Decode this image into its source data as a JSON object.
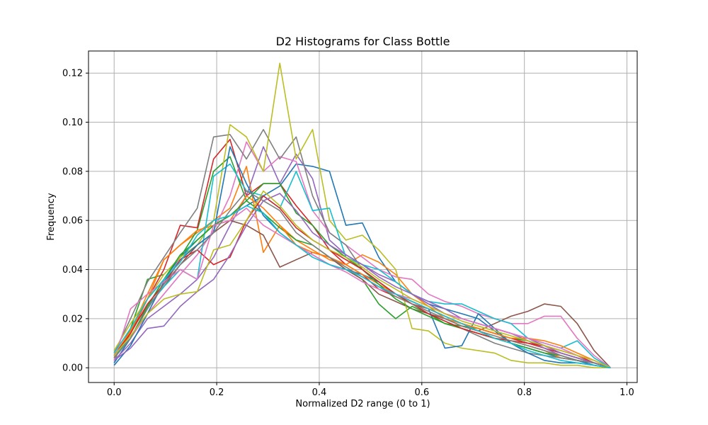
{
  "chart_data": {
    "type": "line",
    "title": "D2 Histograms for Class Bottle",
    "xlabel": "Normalized D2 range (0 to 1)",
    "ylabel": "Frequency",
    "xlim": [
      -0.05,
      1.02
    ],
    "ylim": [
      -0.006,
      0.129
    ],
    "xticks": [
      0.0,
      0.2,
      0.4,
      0.6,
      0.8,
      1.0
    ],
    "xtick_labels": [
      "0.0",
      "0.2",
      "0.4",
      "0.6",
      "0.8",
      "1.0"
    ],
    "yticks": [
      0.0,
      0.02,
      0.04,
      0.06,
      0.08,
      0.1,
      0.12
    ],
    "ytick_labels": [
      "0.00",
      "0.02",
      "0.04",
      "0.06",
      "0.08",
      "0.10",
      "0.12"
    ],
    "grid": true,
    "legend": "none",
    "x": [
      0.0,
      0.032,
      0.065,
      0.097,
      0.129,
      0.162,
      0.194,
      0.226,
      0.258,
      0.291,
      0.323,
      0.355,
      0.387,
      0.42,
      0.452,
      0.484,
      0.516,
      0.549,
      0.581,
      0.613,
      0.645,
      0.678,
      0.71,
      0.742,
      0.774,
      0.807,
      0.839,
      0.871,
      0.903,
      0.936,
      0.968
    ],
    "series": [
      {
        "color": "#1f77b4",
        "values": [
          0.002,
          0.012,
          0.025,
          0.036,
          0.045,
          0.052,
          0.058,
          0.062,
          0.066,
          0.07,
          0.074,
          0.083,
          0.082,
          0.08,
          0.058,
          0.059,
          0.045,
          0.035,
          0.03,
          0.026,
          0.024,
          0.022,
          0.02,
          0.015,
          0.01,
          0.008,
          0.006,
          0.004,
          0.003,
          0.001,
          0.0
        ]
      },
      {
        "color": "#ff7f0e",
        "values": [
          0.004,
          0.015,
          0.03,
          0.044,
          0.05,
          0.055,
          0.06,
          0.065,
          0.082,
          0.047,
          0.058,
          0.052,
          0.048,
          0.044,
          0.042,
          0.046,
          0.043,
          0.038,
          0.03,
          0.025,
          0.02,
          0.018,
          0.015,
          0.012,
          0.011,
          0.009,
          0.007,
          0.004,
          0.003,
          0.002,
          0.0
        ]
      },
      {
        "color": "#2ca02c",
        "values": [
          0.003,
          0.016,
          0.036,
          0.038,
          0.045,
          0.056,
          0.08,
          0.086,
          0.068,
          0.063,
          0.057,
          0.052,
          0.05,
          0.045,
          0.04,
          0.036,
          0.026,
          0.02,
          0.025,
          0.022,
          0.018,
          0.017,
          0.016,
          0.014,
          0.012,
          0.011,
          0.009,
          0.006,
          0.004,
          0.002,
          0.0
        ]
      },
      {
        "color": "#d62728",
        "values": [
          0.004,
          0.014,
          0.028,
          0.04,
          0.058,
          0.057,
          0.085,
          0.093,
          0.07,
          0.075,
          0.075,
          0.066,
          0.058,
          0.048,
          0.042,
          0.038,
          0.032,
          0.029,
          0.026,
          0.024,
          0.021,
          0.018,
          0.016,
          0.014,
          0.012,
          0.01,
          0.008,
          0.006,
          0.004,
          0.002,
          0.0
        ]
      },
      {
        "color": "#9467bd",
        "values": [
          0.003,
          0.01,
          0.02,
          0.025,
          0.03,
          0.036,
          0.045,
          0.058,
          0.07,
          0.09,
          0.075,
          0.087,
          0.077,
          0.052,
          0.046,
          0.042,
          0.038,
          0.035,
          0.03,
          0.026,
          0.022,
          0.02,
          0.018,
          0.016,
          0.014,
          0.011,
          0.008,
          0.005,
          0.003,
          0.002,
          0.0
        ]
      },
      {
        "color": "#8c564b",
        "values": [
          0.005,
          0.015,
          0.025,
          0.033,
          0.042,
          0.05,
          0.055,
          0.06,
          0.058,
          0.054,
          0.041,
          0.044,
          0.047,
          0.045,
          0.04,
          0.036,
          0.03,
          0.027,
          0.024,
          0.022,
          0.02,
          0.017,
          0.015,
          0.018,
          0.021,
          0.023,
          0.026,
          0.025,
          0.018,
          0.007,
          0.0
        ]
      },
      {
        "color": "#e377c2",
        "values": [
          0.004,
          0.012,
          0.022,
          0.03,
          0.038,
          0.046,
          0.056,
          0.07,
          0.092,
          0.08,
          0.086,
          0.084,
          0.064,
          0.055,
          0.05,
          0.045,
          0.04,
          0.037,
          0.036,
          0.03,
          0.027,
          0.025,
          0.022,
          0.02,
          0.018,
          0.018,
          0.021,
          0.021,
          0.012,
          0.005,
          0.0
        ]
      },
      {
        "color": "#7f7f7f",
        "values": [
          0.006,
          0.02,
          0.035,
          0.045,
          0.055,
          0.065,
          0.094,
          0.095,
          0.085,
          0.097,
          0.085,
          0.094,
          0.07,
          0.055,
          0.05,
          0.04,
          0.035,
          0.03,
          0.026,
          0.022,
          0.019,
          0.016,
          0.013,
          0.01,
          0.008,
          0.006,
          0.005,
          0.004,
          0.003,
          0.002,
          0.0
        ]
      },
      {
        "color": "#bcbd22",
        "values": [
          0.007,
          0.018,
          0.028,
          0.038,
          0.045,
          0.05,
          0.06,
          0.099,
          0.094,
          0.08,
          0.124,
          0.085,
          0.097,
          0.06,
          0.052,
          0.054,
          0.048,
          0.04,
          0.016,
          0.015,
          0.01,
          0.008,
          0.007,
          0.006,
          0.003,
          0.002,
          0.002,
          0.001,
          0.001,
          0.0,
          0.0
        ]
      },
      {
        "color": "#17becf",
        "values": [
          0.005,
          0.012,
          0.025,
          0.033,
          0.04,
          0.036,
          0.078,
          0.083,
          0.072,
          0.07,
          0.065,
          0.08,
          0.064,
          0.065,
          0.045,
          0.042,
          0.04,
          0.035,
          0.03,
          0.027,
          0.026,
          0.026,
          0.023,
          0.02,
          0.018,
          0.012,
          0.01,
          0.008,
          0.011,
          0.004,
          0.0
        ]
      },
      {
        "color": "#1f77b4",
        "values": [
          0.001,
          0.009,
          0.022,
          0.035,
          0.044,
          0.05,
          0.055,
          0.09,
          0.075,
          0.062,
          0.055,
          0.05,
          0.046,
          0.042,
          0.04,
          0.038,
          0.035,
          0.03,
          0.027,
          0.024,
          0.008,
          0.009,
          0.022,
          0.016,
          0.01,
          0.006,
          0.003,
          0.002,
          0.002,
          0.001,
          0.0
        ]
      },
      {
        "color": "#ff7f0e",
        "values": [
          0.005,
          0.015,
          0.028,
          0.044,
          0.05,
          0.056,
          0.058,
          0.06,
          0.07,
          0.065,
          0.058,
          0.05,
          0.047,
          0.045,
          0.042,
          0.038,
          0.034,
          0.03,
          0.027,
          0.024,
          0.021,
          0.018,
          0.016,
          0.014,
          0.012,
          0.012,
          0.011,
          0.009,
          0.006,
          0.003,
          0.0
        ]
      },
      {
        "color": "#2ca02c",
        "values": [
          0.004,
          0.012,
          0.025,
          0.036,
          0.046,
          0.052,
          0.058,
          0.062,
          0.068,
          0.075,
          0.075,
          0.063,
          0.058,
          0.05,
          0.045,
          0.04,
          0.034,
          0.028,
          0.024,
          0.021,
          0.018,
          0.016,
          0.014,
          0.012,
          0.01,
          0.008,
          0.006,
          0.005,
          0.003,
          0.002,
          0.0
        ]
      },
      {
        "color": "#d62728",
        "values": [
          0.005,
          0.014,
          0.026,
          0.034,
          0.044,
          0.048,
          0.042,
          0.045,
          0.06,
          0.07,
          0.065,
          0.057,
          0.052,
          0.048,
          0.044,
          0.04,
          0.035,
          0.03,
          0.026,
          0.022,
          0.019,
          0.016,
          0.014,
          0.012,
          0.011,
          0.01,
          0.009,
          0.007,
          0.005,
          0.002,
          0.0
        ]
      },
      {
        "color": "#9467bd",
        "values": [
          0.003,
          0.008,
          0.016,
          0.017,
          0.025,
          0.031,
          0.036,
          0.046,
          0.058,
          0.068,
          0.071,
          0.064,
          0.055,
          0.05,
          0.046,
          0.042,
          0.037,
          0.033,
          0.03,
          0.027,
          0.024,
          0.02,
          0.018,
          0.016,
          0.014,
          0.012,
          0.009,
          0.006,
          0.004,
          0.002,
          0.0
        ]
      },
      {
        "color": "#e377c2",
        "values": [
          0.003,
          0.024,
          0.03,
          0.035,
          0.04,
          0.036,
          0.058,
          0.06,
          0.065,
          0.058,
          0.054,
          0.05,
          0.046,
          0.042,
          0.039,
          0.035,
          0.032,
          0.03,
          0.028,
          0.025,
          0.022,
          0.02,
          0.018,
          0.016,
          0.014,
          0.012,
          0.01,
          0.008,
          0.005,
          0.003,
          0.0
        ]
      },
      {
        "color": "#7f7f7f",
        "values": [
          0.004,
          0.012,
          0.024,
          0.034,
          0.042,
          0.048,
          0.055,
          0.064,
          0.072,
          0.068,
          0.064,
          0.055,
          0.05,
          0.045,
          0.041,
          0.037,
          0.033,
          0.029,
          0.026,
          0.023,
          0.02,
          0.017,
          0.015,
          0.013,
          0.011,
          0.009,
          0.007,
          0.005,
          0.003,
          0.002,
          0.0
        ]
      },
      {
        "color": "#bcbd22",
        "values": [
          0.005,
          0.013,
          0.022,
          0.028,
          0.03,
          0.031,
          0.048,
          0.05,
          0.06,
          0.072,
          0.066,
          0.058,
          0.052,
          0.048,
          0.045,
          0.041,
          0.036,
          0.032,
          0.028,
          0.025,
          0.022,
          0.019,
          0.017,
          0.015,
          0.013,
          0.011,
          0.009,
          0.007,
          0.005,
          0.003,
          0.0
        ]
      },
      {
        "color": "#17becf",
        "values": [
          0.006,
          0.016,
          0.028,
          0.036,
          0.043,
          0.054,
          0.06,
          0.062,
          0.066,
          0.063,
          0.055,
          0.05,
          0.045,
          0.042,
          0.04,
          0.037,
          0.033,
          0.03,
          0.027,
          0.024,
          0.021,
          0.018,
          0.015,
          0.012,
          0.01,
          0.007,
          0.005,
          0.003,
          0.002,
          0.001,
          0.0
        ]
      }
    ]
  }
}
